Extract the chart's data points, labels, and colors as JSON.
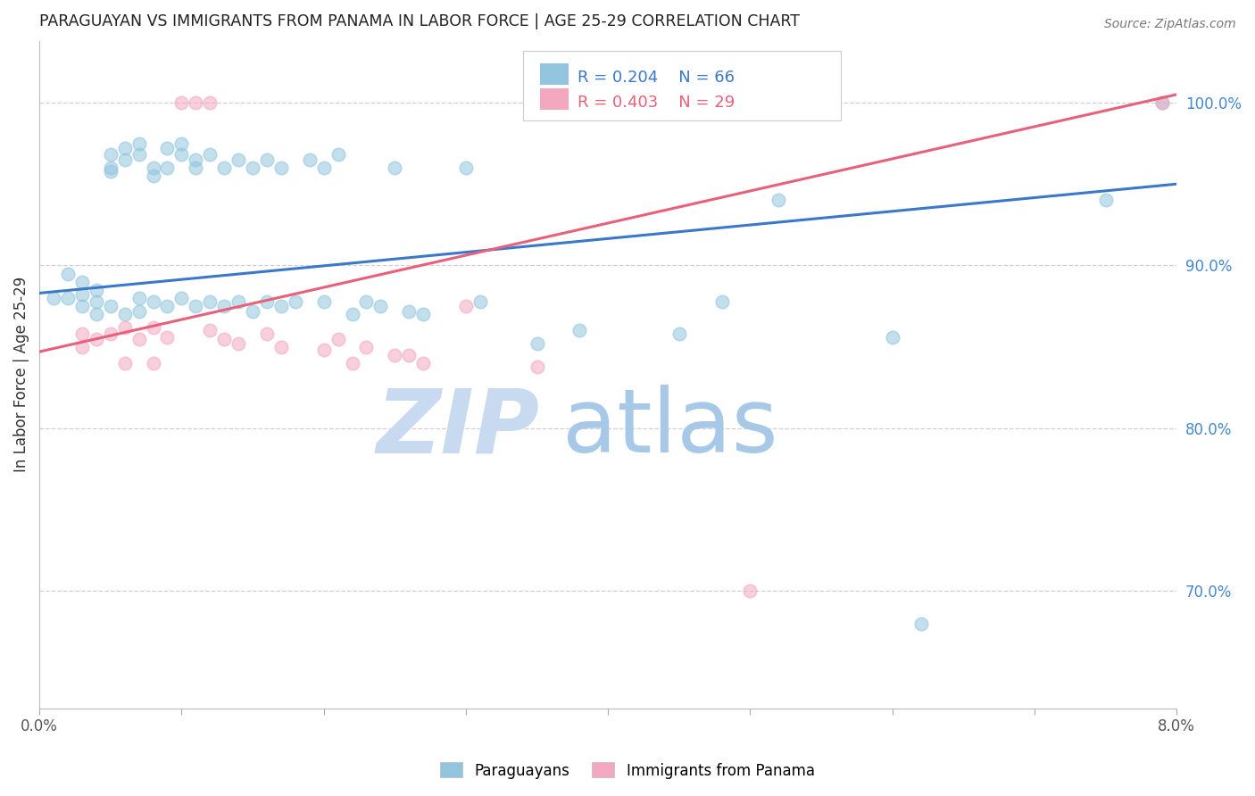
{
  "title": "PARAGUAYAN VS IMMIGRANTS FROM PANAMA IN LABOR FORCE | AGE 25-29 CORRELATION CHART",
  "source": "Source: ZipAtlas.com",
  "ylabel": "In Labor Force | Age 25-29",
  "ylabel_right_labels": [
    "70.0%",
    "80.0%",
    "90.0%",
    "100.0%"
  ],
  "ylabel_right_values": [
    0.7,
    0.8,
    0.9,
    1.0
  ],
  "legend_blue_R": "R = 0.204",
  "legend_blue_N": "N = 66",
  "legend_pink_R": "R = 0.403",
  "legend_pink_N": "N = 29",
  "blue_color": "#92c5de",
  "pink_color": "#f4a8c0",
  "blue_line_color": "#3a78c9",
  "pink_line_color": "#e8607a",
  "legend_blue_text_color": "#3a78c9",
  "legend_pink_text_color": "#e8607a",
  "watermark_zip": "ZIP",
  "watermark_atlas": "atlas",
  "watermark_zip_color": "#c8daf0",
  "watermark_atlas_color": "#a8c8e8",
  "x_min": 0.0,
  "x_max": 0.08,
  "y_min": 0.628,
  "y_max": 1.038,
  "blue_scatter_x": [
    0.001,
    0.002,
    0.002,
    0.003,
    0.003,
    0.003,
    0.004,
    0.004,
    0.004,
    0.005,
    0.005,
    0.005,
    0.005,
    0.006,
    0.006,
    0.006,
    0.007,
    0.007,
    0.007,
    0.007,
    0.008,
    0.008,
    0.008,
    0.009,
    0.009,
    0.009,
    0.01,
    0.01,
    0.01,
    0.011,
    0.011,
    0.011,
    0.012,
    0.012,
    0.013,
    0.013,
    0.014,
    0.014,
    0.015,
    0.015,
    0.016,
    0.016,
    0.017,
    0.017,
    0.018,
    0.019,
    0.02,
    0.02,
    0.021,
    0.022,
    0.023,
    0.024,
    0.025,
    0.026,
    0.027,
    0.03,
    0.031,
    0.035,
    0.038,
    0.045,
    0.048,
    0.052,
    0.06,
    0.062,
    0.075,
    0.079
  ],
  "blue_scatter_y": [
    0.88,
    0.895,
    0.88,
    0.89,
    0.882,
    0.875,
    0.885,
    0.878,
    0.87,
    0.968,
    0.96,
    0.958,
    0.875,
    0.972,
    0.965,
    0.87,
    0.975,
    0.968,
    0.88,
    0.872,
    0.96,
    0.955,
    0.878,
    0.972,
    0.96,
    0.875,
    0.975,
    0.968,
    0.88,
    0.965,
    0.96,
    0.875,
    0.968,
    0.878,
    0.96,
    0.875,
    0.965,
    0.878,
    0.96,
    0.872,
    0.965,
    0.878,
    0.96,
    0.875,
    0.878,
    0.965,
    0.96,
    0.878,
    0.968,
    0.87,
    0.878,
    0.875,
    0.96,
    0.872,
    0.87,
    0.96,
    0.878,
    0.852,
    0.86,
    0.858,
    0.878,
    0.94,
    0.856,
    0.68,
    0.94,
    1.0
  ],
  "pink_scatter_x": [
    0.003,
    0.003,
    0.004,
    0.005,
    0.006,
    0.006,
    0.007,
    0.008,
    0.008,
    0.009,
    0.01,
    0.011,
    0.012,
    0.012,
    0.013,
    0.014,
    0.016,
    0.017,
    0.02,
    0.021,
    0.022,
    0.023,
    0.025,
    0.026,
    0.027,
    0.03,
    0.035,
    0.05,
    0.079
  ],
  "pink_scatter_y": [
    0.858,
    0.85,
    0.855,
    0.858,
    0.862,
    0.84,
    0.855,
    0.862,
    0.84,
    0.856,
    1.0,
    1.0,
    1.0,
    0.86,
    0.855,
    0.852,
    0.858,
    0.85,
    0.848,
    0.855,
    0.84,
    0.85,
    0.845,
    0.845,
    0.84,
    0.875,
    0.838,
    0.7,
    1.0
  ],
  "blue_line_x": [
    0.0,
    0.08
  ],
  "blue_line_y": [
    0.883,
    0.95
  ],
  "pink_line_x": [
    0.0,
    0.08
  ],
  "pink_line_y": [
    0.847,
    1.005
  ],
  "x_tick_positions": [
    0.0,
    0.01,
    0.02,
    0.03,
    0.04,
    0.05,
    0.06,
    0.07,
    0.08
  ],
  "x_tick_show_labels": [
    true,
    false,
    false,
    false,
    false,
    false,
    false,
    false,
    true
  ]
}
